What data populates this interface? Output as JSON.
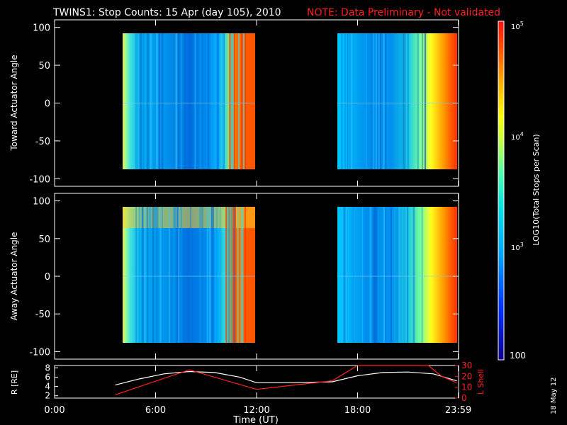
{
  "title": {
    "main": "TWINS1: Stop Counts: 15 Apr (day 105), 2010",
    "note": "NOTE: Data Preliminary - Not validated"
  },
  "colors": {
    "background": "#000000",
    "axes": "#ffffff",
    "note": "#ff2020",
    "lshell": "#ff2020",
    "r_line": "#ffffff"
  },
  "stamp": "18 May 12",
  "chart_data": [
    {
      "type": "heatmap",
      "ylabel": "Toward Actuator Angle",
      "ylim": [
        -110,
        110
      ],
      "yticks": [
        100,
        50,
        0,
        -50,
        -100
      ],
      "xlim_hours": [
        0,
        24
      ],
      "colorscale": "log",
      "data_blocks_hours": [
        [
          3.6,
          12.0
        ],
        [
          16.7,
          23.9
        ]
      ],
      "angle_range": [
        -88,
        90
      ],
      "description_values_log10_counts": {
        "edge_start": 3.9,
        "bulk": 3.25,
        "late_first_block": 4.6,
        "late_second_block": 4.6
      }
    },
    {
      "type": "heatmap",
      "ylabel": "Away Actuator Angle",
      "ylim": [
        -110,
        110
      ],
      "yticks": [
        100,
        50,
        0,
        -50,
        -100
      ],
      "xlim_hours": [
        0,
        24
      ],
      "colorscale": "log",
      "data_blocks_hours": [
        [
          3.6,
          12.0
        ],
        [
          16.7,
          23.9
        ]
      ],
      "angle_range": [
        -88,
        90
      ]
    },
    {
      "type": "line",
      "ylabel_left": "R [R_E]",
      "ylabel_right": "L Shell",
      "yticks_left": [
        2,
        4,
        6,
        8
      ],
      "yticks_right": [
        0,
        10,
        20,
        30
      ],
      "ylim_left": [
        1.5,
        8.5
      ],
      "ylim_right": [
        0,
        30
      ],
      "series": [
        {
          "name": "R",
          "x": [
            3.6,
            5,
            6.5,
            8,
            9.5,
            11,
            12,
            14,
            16.5,
            18,
            19.5,
            21,
            22.5,
            23.9
          ],
          "values": [
            4.3,
            5.6,
            6.7,
            7.2,
            7.0,
            6.0,
            4.8,
            4.8,
            5.0,
            6.3,
            7.0,
            7.1,
            6.7,
            5.2
          ]
        },
        {
          "name": "L Shell",
          "x": [
            3.6,
            8,
            12,
            16.5,
            18.0,
            22.2,
            23.0,
            23.9
          ],
          "values": [
            3,
            26,
            8,
            16,
            32,
            32,
            20,
            14
          ]
        }
      ]
    },
    {
      "type": "colorbar",
      "title": "LOG10(Total Stops per Scan)",
      "range": [
        100,
        100000
      ],
      "tick_labels": [
        "10^5",
        "10^4",
        "10^3",
        "100"
      ]
    }
  ],
  "axes": {
    "x_ticks": [
      "0:00",
      "6:00",
      "12:00",
      "18:00",
      "23:59"
    ],
    "xlabel": "Time (UT)",
    "panel1_ylabel": "Toward Actuator Angle",
    "panel2_ylabel": "Away Actuator Angle",
    "panel3_ylabel_left": "R [RE]",
    "panel3_ylabel_right": "L Shell",
    "y_ticks": [
      "100",
      "50",
      "0",
      "-50",
      "-100"
    ],
    "r_ticks": [
      "2",
      "4",
      "6",
      "8"
    ],
    "l_ticks": [
      "0",
      "10",
      "20",
      "30"
    ],
    "cbar_labels": [
      "10",
      "5",
      "10",
      "4",
      "10",
      "3",
      "100"
    ],
    "cbar_title": "LOG10(Total Stops per Scan)"
  }
}
